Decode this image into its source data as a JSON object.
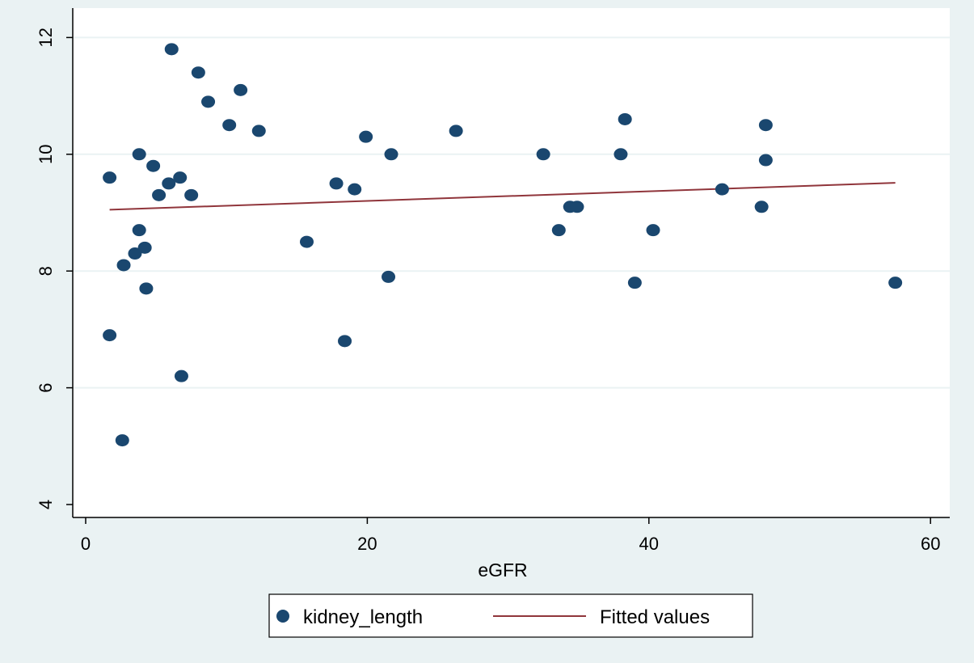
{
  "chart_data": {
    "type": "scatter",
    "xlabel": "eGFR",
    "ylabel": "",
    "xlim": [
      0,
      60
    ],
    "ylim": [
      4,
      12
    ],
    "xticks": [
      0,
      20,
      40,
      60
    ],
    "yticks": [
      4,
      6,
      8,
      10,
      12
    ],
    "grid": "horizontal",
    "legend_placement": "bottom",
    "colors": {
      "background": "#eaf2f3",
      "plot_area": "#ffffff",
      "gridline": "#eaf2f3",
      "marker": "#1a476f",
      "fit_line": "#90353b"
    },
    "series": [
      {
        "name": "kidney_length",
        "kind": "scatter",
        "points": [
          {
            "x": 1.7,
            "y": 9.6
          },
          {
            "x": 1.7,
            "y": 6.9
          },
          {
            "x": 2.6,
            "y": 5.1
          },
          {
            "x": 2.7,
            "y": 8.1
          },
          {
            "x": 3.5,
            "y": 8.3
          },
          {
            "x": 3.8,
            "y": 10.0
          },
          {
            "x": 3.8,
            "y": 8.7
          },
          {
            "x": 4.2,
            "y": 8.4
          },
          {
            "x": 4.3,
            "y": 7.7
          },
          {
            "x": 4.8,
            "y": 9.8
          },
          {
            "x": 5.2,
            "y": 9.3
          },
          {
            "x": 5.9,
            "y": 9.5
          },
          {
            "x": 6.1,
            "y": 11.8
          },
          {
            "x": 6.7,
            "y": 9.6
          },
          {
            "x": 6.8,
            "y": 6.2
          },
          {
            "x": 7.5,
            "y": 9.3
          },
          {
            "x": 8.0,
            "y": 11.4
          },
          {
            "x": 8.7,
            "y": 10.9
          },
          {
            "x": 10.2,
            "y": 10.5
          },
          {
            "x": 11.0,
            "y": 11.1
          },
          {
            "x": 12.3,
            "y": 10.4
          },
          {
            "x": 15.7,
            "y": 8.5
          },
          {
            "x": 17.8,
            "y": 9.5
          },
          {
            "x": 18.4,
            "y": 6.8
          },
          {
            "x": 19.1,
            "y": 9.4
          },
          {
            "x": 19.9,
            "y": 10.3
          },
          {
            "x": 21.5,
            "y": 7.9
          },
          {
            "x": 21.7,
            "y": 10.0
          },
          {
            "x": 26.3,
            "y": 10.4
          },
          {
            "x": 32.5,
            "y": 10.0
          },
          {
            "x": 33.6,
            "y": 8.7
          },
          {
            "x": 34.4,
            "y": 9.1
          },
          {
            "x": 34.9,
            "y": 9.1
          },
          {
            "x": 38.0,
            "y": 10.0
          },
          {
            "x": 38.3,
            "y": 10.6
          },
          {
            "x": 39.0,
            "y": 7.8
          },
          {
            "x": 40.3,
            "y": 8.7
          },
          {
            "x": 45.2,
            "y": 9.4
          },
          {
            "x": 48.0,
            "y": 9.1
          },
          {
            "x": 48.3,
            "y": 10.5
          },
          {
            "x": 48.3,
            "y": 9.9
          },
          {
            "x": 57.5,
            "y": 7.8
          }
        ]
      },
      {
        "name": "Fitted values",
        "kind": "line",
        "points": [
          {
            "x": 1.7,
            "y": 9.05
          },
          {
            "x": 57.5,
            "y": 9.51
          }
        ]
      }
    ]
  }
}
